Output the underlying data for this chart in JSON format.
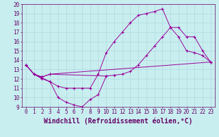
{
  "title": "",
  "xlabel": "Windchill (Refroidissement éolien,°C)",
  "ylabel": "",
  "xlim": [
    -0.5,
    23.5
  ],
  "ylim": [
    9,
    20
  ],
  "xticks": [
    0,
    1,
    2,
    3,
    4,
    5,
    6,
    7,
    8,
    9,
    10,
    11,
    12,
    13,
    14,
    15,
    16,
    17,
    18,
    19,
    20,
    21,
    22,
    23
  ],
  "yticks": [
    9,
    10,
    11,
    12,
    13,
    14,
    15,
    16,
    17,
    18,
    19,
    20
  ],
  "bg_color": "#c8eef0",
  "grid_color": "#b0d8dc",
  "line_color": "#990099",
  "tick_fontsize": 5.5,
  "xlabel_fontsize": 7,
  "line1_x": [
    0,
    1,
    2,
    3,
    4,
    5,
    6,
    7,
    8,
    9,
    10
  ],
  "line1_y": [
    13.5,
    12.5,
    12.0,
    11.7,
    10.0,
    9.5,
    9.2,
    9.0,
    9.8,
    10.3,
    12.3
  ],
  "line2_x": [
    0,
    1,
    2,
    3,
    4,
    5,
    6,
    7,
    8,
    9,
    10,
    11,
    12,
    13,
    14,
    15,
    16,
    17,
    18,
    19,
    20,
    21,
    22,
    23
  ],
  "line2_y": [
    13.5,
    12.5,
    12.1,
    11.7,
    11.2,
    11.0,
    11.0,
    11.0,
    11.0,
    12.5,
    14.8,
    16.0,
    17.0,
    18.0,
    18.8,
    19.0,
    19.2,
    19.5,
    17.5,
    16.5,
    15.0,
    14.8,
    14.5,
    13.8
  ],
  "line3_x": [
    0,
    1,
    2,
    3,
    10,
    11,
    12,
    13,
    14,
    15,
    16,
    17,
    18,
    19,
    20,
    21,
    22,
    23
  ],
  "line3_y": [
    13.5,
    12.5,
    12.2,
    12.5,
    12.3,
    12.4,
    12.5,
    12.8,
    13.5,
    14.5,
    15.5,
    16.5,
    17.5,
    17.5,
    16.5,
    16.5,
    15.0,
    13.8
  ],
  "line4_x": [
    0,
    1,
    2,
    3,
    23
  ],
  "line4_y": [
    13.5,
    12.5,
    12.2,
    12.5,
    13.8
  ]
}
